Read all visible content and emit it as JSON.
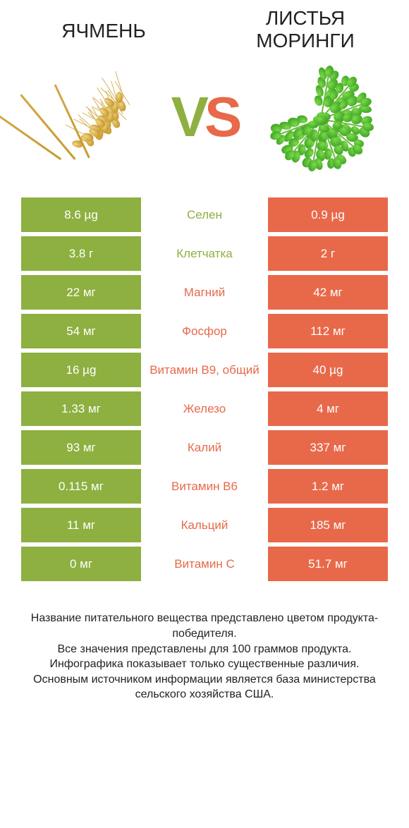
{
  "type": "infographic",
  "colors": {
    "left": "#8db040",
    "right": "#e8694a",
    "background": "#ffffff",
    "text": "#222222",
    "white": "#ffffff"
  },
  "header": {
    "left_title": "ЯЧМЕНЬ",
    "right_title": "ЛИСТЬЯ МОРИНГИ",
    "vs_v": "V",
    "vs_s": "S"
  },
  "fontsize": {
    "title": 28,
    "vs": 80,
    "cell": 17,
    "footer": 16
  },
  "rows": [
    {
      "left": "8.6 µg",
      "name": "Селен",
      "right": "0.9 µg",
      "winner": "left"
    },
    {
      "left": "3.8 г",
      "name": "Клетчатка",
      "right": "2 г",
      "winner": "left"
    },
    {
      "left": "22 мг",
      "name": "Магний",
      "right": "42 мг",
      "winner": "right"
    },
    {
      "left": "54 мг",
      "name": "Фосфор",
      "right": "112 мг",
      "winner": "right"
    },
    {
      "left": "16 µg",
      "name": "Витамин B9, общий",
      "right": "40 µg",
      "winner": "right"
    },
    {
      "left": "1.33 мг",
      "name": "Железо",
      "right": "4 мг",
      "winner": "right"
    },
    {
      "left": "93 мг",
      "name": "Калий",
      "right": "337 мг",
      "winner": "right"
    },
    {
      "left": "0.115 мг",
      "name": "Витамин B6",
      "right": "1.2 мг",
      "winner": "right"
    },
    {
      "left": "11 мг",
      "name": "Кальций",
      "right": "185 мг",
      "winner": "right"
    },
    {
      "left": "0 мг",
      "name": "Витамин C",
      "right": "51.7 мг",
      "winner": "right"
    }
  ],
  "footer": {
    "line1": "Название питательного вещества представлено цветом продукта-победителя.",
    "line2": "Все значения представлены для 100 граммов продукта.",
    "line3": "Инфографика показывает только существенные различия.",
    "line4": "Основным источником информации является база министерства сельского хозяйства США."
  }
}
